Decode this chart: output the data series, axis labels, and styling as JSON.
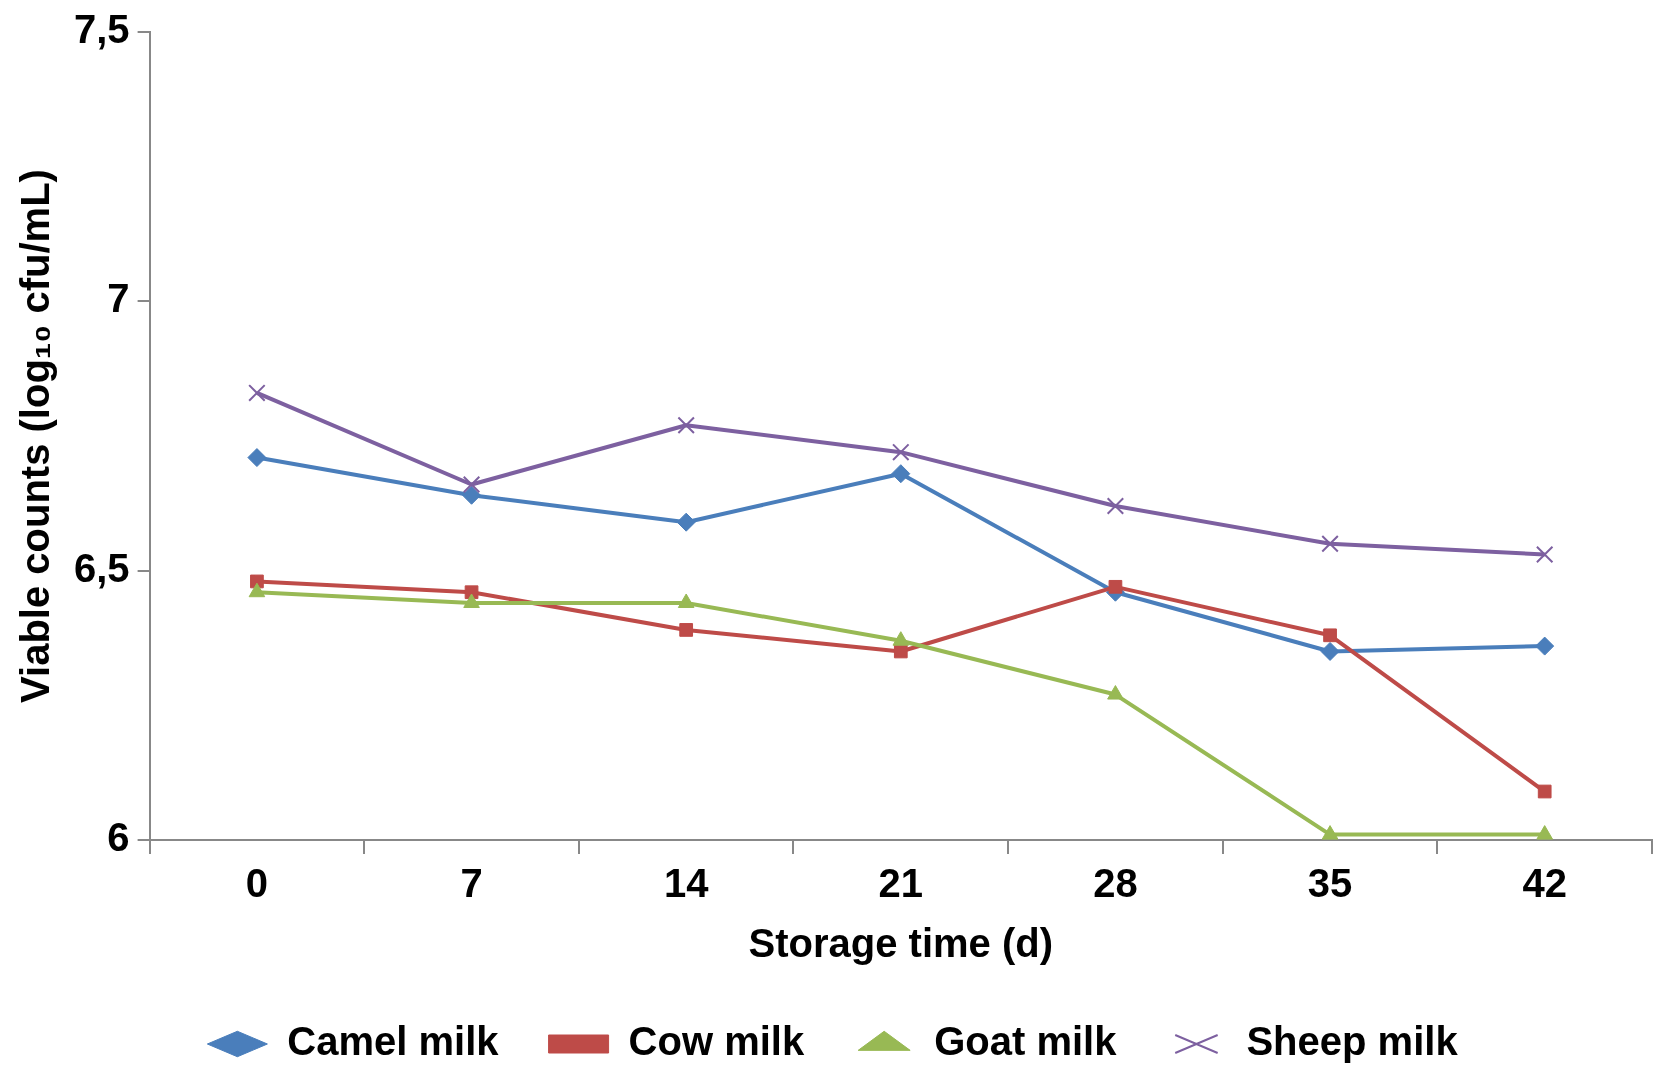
{
  "chart_data": {
    "type": "line",
    "xlabel": "Storage time (d)",
    "ylabel": "Viable counts (log₁₀ cfu/mL)",
    "categories": [
      "0",
      "7",
      "14",
      "21",
      "28",
      "35",
      "42"
    ],
    "ylim": [
      6,
      7.5
    ],
    "yticks": [
      {
        "value": 6,
        "label": "6"
      },
      {
        "value": 6.5,
        "label": "6,5"
      },
      {
        "value": 7,
        "label": "7"
      },
      {
        "value": 7.5,
        "label": "7,5"
      }
    ],
    "grid": false,
    "legend": "bottom",
    "line_style": "solid",
    "series": [
      {
        "name": "Camel milk",
        "color": "#4a7ebb",
        "marker": "diamond",
        "values": [
          6.71,
          6.64,
          6.59,
          6.68,
          6.46,
          6.35,
          6.36
        ]
      },
      {
        "name": "Cow milk",
        "color": "#be4b48",
        "marker": "square",
        "values": [
          6.48,
          6.46,
          6.39,
          6.35,
          6.47,
          6.38,
          6.09
        ]
      },
      {
        "name": "Goat milk",
        "color": "#98b954",
        "marker": "triangle",
        "values": [
          6.46,
          6.44,
          6.44,
          6.37,
          6.27,
          6.01,
          6.01
        ]
      },
      {
        "name": "Sheep milk",
        "color": "#7d60a0",
        "marker": "cross",
        "values": [
          6.83,
          6.66,
          6.77,
          6.72,
          6.62,
          6.55,
          6.53
        ]
      }
    ]
  }
}
